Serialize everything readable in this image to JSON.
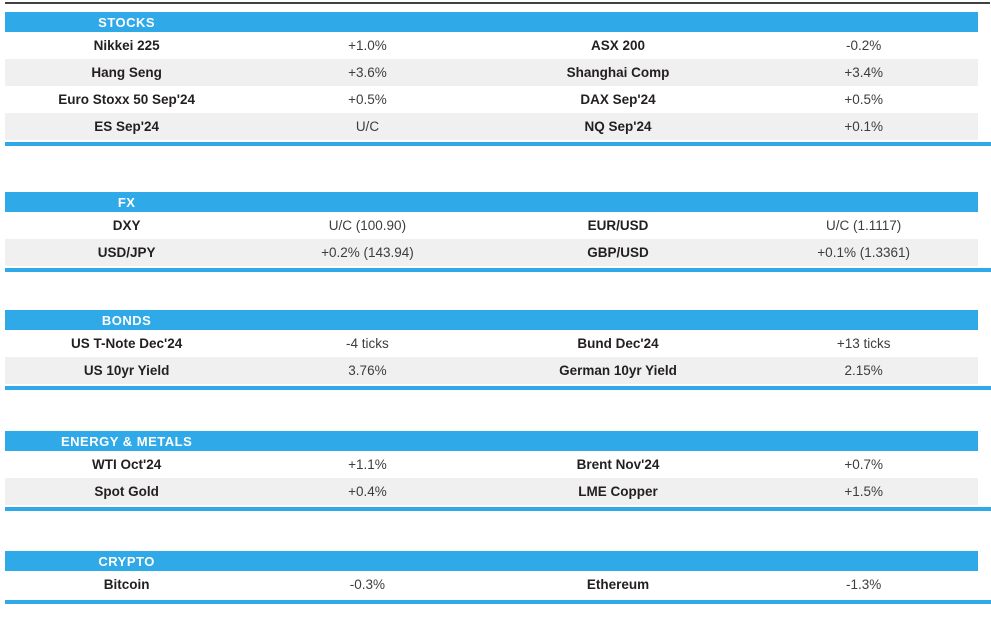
{
  "colors": {
    "accent": "#2FA9E8",
    "row_alt": "#F0F0F1"
  },
  "sections": [
    {
      "title": "STOCKS",
      "rows": [
        {
          "left_name": "Nikkei 225",
          "left_value": "+1.0%",
          "right_name": "ASX 200",
          "right_value": "-0.2%"
        },
        {
          "left_name": "Hang Seng",
          "left_value": "+3.6%",
          "right_name": "Shanghai Comp",
          "right_value": "+3.4%"
        },
        {
          "left_name": "Euro Stoxx 50 Sep'24",
          "left_value": "+0.5%",
          "right_name": "DAX Sep'24",
          "right_value": "+0.5%"
        },
        {
          "left_name": "ES Sep'24",
          "left_value": "U/C",
          "right_name": "NQ Sep'24",
          "right_value": "+0.1%"
        }
      ]
    },
    {
      "title": "FX",
      "rows": [
        {
          "left_name": "DXY",
          "left_value": "U/C (100.90)",
          "right_name": "EUR/USD",
          "right_value": "U/C (1.1117)"
        },
        {
          "left_name": "USD/JPY",
          "left_value": "+0.2% (143.94)",
          "right_name": "GBP/USD",
          "right_value": "+0.1% (1.3361)"
        }
      ]
    },
    {
      "title": "BONDS",
      "rows": [
        {
          "left_name": "US T-Note Dec'24",
          "left_value": "-4 ticks",
          "right_name": "Bund Dec'24",
          "right_value": "+13 ticks"
        },
        {
          "left_name": "US 10yr Yield",
          "left_value": "3.76%",
          "right_name": "German 10yr Yield",
          "right_value": "2.15%"
        }
      ]
    },
    {
      "title": "ENERGY & METALS",
      "rows": [
        {
          "left_name": "WTI Oct'24",
          "left_value": "+1.1%",
          "right_name": "Brent Nov'24",
          "right_value": "+0.7%"
        },
        {
          "left_name": "Spot Gold",
          "left_value": "+0.4%",
          "right_name": "LME Copper",
          "right_value": "+1.5%"
        }
      ]
    },
    {
      "title": "CRYPTO",
      "rows": [
        {
          "left_name": "Bitcoin",
          "left_value": "-0.3%",
          "right_name": "Ethereum",
          "right_value": "-1.3%"
        }
      ]
    }
  ]
}
